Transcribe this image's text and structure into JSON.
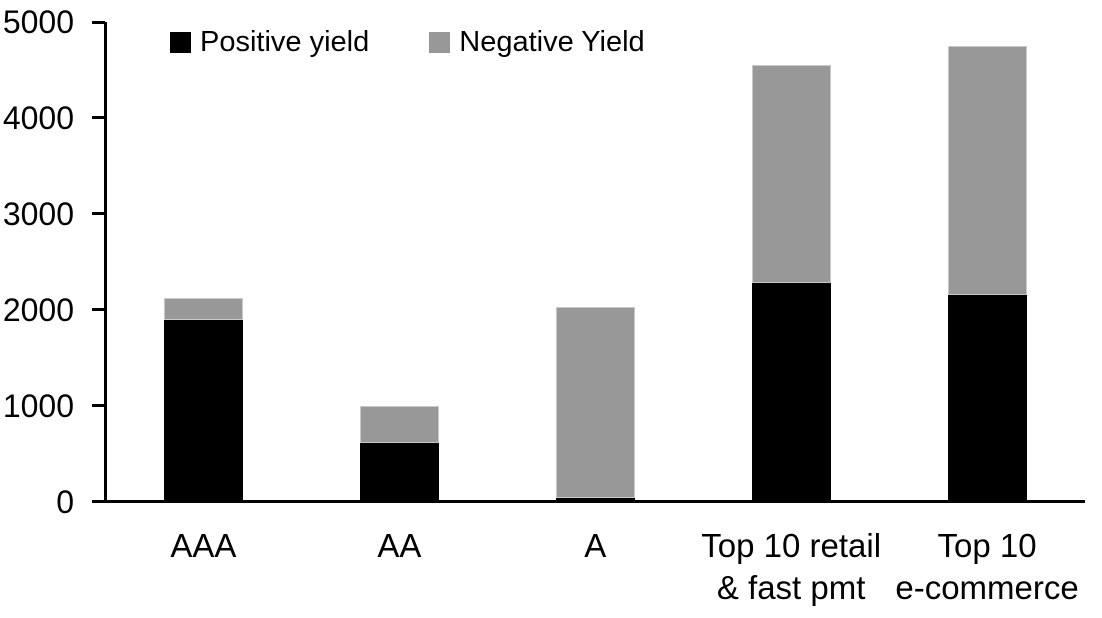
{
  "chart_data": {
    "type": "bar",
    "stacked": true,
    "title": "",
    "xlabel": "",
    "ylabel": "",
    "grid": false,
    "legend_position": "top-left",
    "categories": [
      "AAA",
      "AA",
      "A",
      "Top 10 retail & fast pmt",
      "Top 10 e-commerce"
    ],
    "category_label_lines": [
      [
        "AAA"
      ],
      [
        "AA"
      ],
      [
        "A"
      ],
      [
        "Top 10 retail",
        "& fast pmt"
      ],
      [
        "Top 10",
        "e-commerce"
      ]
    ],
    "series": [
      {
        "name": "Positive yield",
        "color": "#000000",
        "values": [
          1890,
          610,
          40,
          2280,
          2150
        ]
      },
      {
        "name": "Negative Yield",
        "color": "#989898",
        "values": [
          230,
          390,
          1990,
          2270,
          2600
        ]
      }
    ],
    "ylim": [
      0,
      5000
    ],
    "yticks": [
      0,
      1000,
      2000,
      3000,
      4000,
      5000
    ],
    "axis_color": "#000000"
  }
}
